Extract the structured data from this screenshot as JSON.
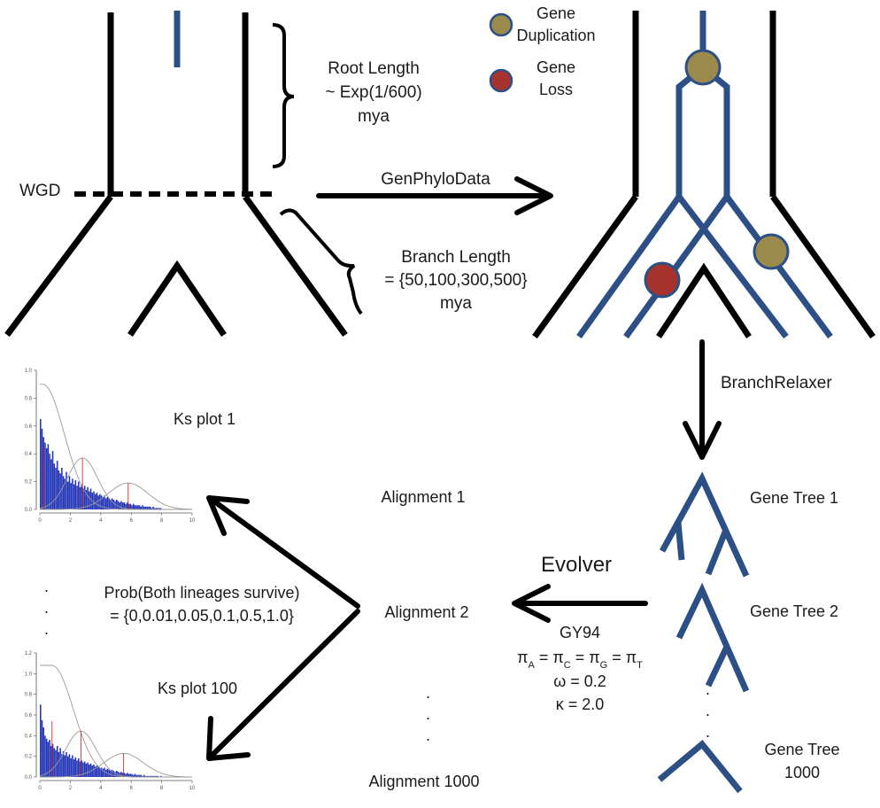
{
  "legend": {
    "duplication": "Gene Duplication",
    "duplication_l1": "Gene",
    "duplication_l2": "Duplication",
    "loss_l1": "Gene",
    "loss_l2": "Loss"
  },
  "labels": {
    "wgd": "WGD",
    "root_l1": "Root Length",
    "root_l2": "~ Exp(1/600)",
    "root_l3": "mya",
    "branch_l1": "Branch Length",
    "branch_l2": "= {50,100,300,500}",
    "branch_l3": "mya",
    "genphylodata": "GenPhyloData",
    "branchrelaxer": "BranchRelaxer",
    "evolver": "Evolver",
    "gene_tree_1": "Gene Tree 1",
    "gene_tree_2": "Gene Tree 2",
    "gene_tree_1000_l1": "Gene Tree",
    "gene_tree_1000_l2": "1000",
    "alignment_1": "Alignment 1",
    "alignment_2": "Alignment 2",
    "alignment_1000": "Alignment 1000",
    "prob_l1": "Prob(Both lineages survive)",
    "prob_l2": "= {0,0.01,0.05,0.1,0.5,1.0}",
    "gy94": "GY94",
    "pi_sym": "π",
    "pi_a": "A",
    "pi_c": "C",
    "pi_g": "G",
    "pi_t": "T",
    "omega": "ω = 0.2",
    "kappa": "κ = 2.0",
    "ks_plot_1": "Ks plot 1",
    "ks_plot_100": "Ks plot 100",
    "dot": "."
  },
  "colors": {
    "tree_blue": "#2c4f86",
    "duplication": "#9a8a4c",
    "loss": "#a8332e",
    "histogram": "#2436b8",
    "density_curve": "#9a9a9a",
    "peak_line": "#cc3333"
  },
  "chart_data": [
    {
      "type": "bar",
      "title": "",
      "xlim": [
        0,
        10
      ],
      "ylim": [
        0,
        1.0
      ],
      "xticks": [
        "0",
        "2",
        "4",
        "6",
        "8",
        "10"
      ],
      "yticks": [
        "0.0",
        "0.2",
        "0.4",
        "0.6",
        "0.8",
        "1.0"
      ],
      "peaks": [
        0.2,
        2.8,
        5.8
      ],
      "bin_width": 0.1,
      "values": [
        0.65,
        0.58,
        0.52,
        0.48,
        0.44,
        0.47,
        0.4,
        0.36,
        0.42,
        0.33,
        0.3,
        0.35,
        0.28,
        0.26,
        0.3,
        0.24,
        0.22,
        0.27,
        0.2,
        0.24,
        0.19,
        0.22,
        0.18,
        0.21,
        0.17,
        0.2,
        0.16,
        0.18,
        0.15,
        0.17,
        0.14,
        0.16,
        0.13,
        0.15,
        0.12,
        0.13,
        0.11,
        0.12,
        0.1,
        0.11,
        0.1,
        0.09,
        0.1,
        0.08,
        0.09,
        0.08,
        0.07,
        0.08,
        0.07,
        0.06,
        0.07,
        0.06,
        0.05,
        0.06,
        0.05,
        0.05,
        0.04,
        0.05,
        0.04,
        0.04,
        0.03,
        0.04,
        0.03,
        0.03,
        0.03,
        0.03,
        0.02,
        0.03,
        0.02,
        0.02,
        0.02,
        0.02,
        0.02,
        0.01,
        0.02,
        0.01,
        0.01,
        0.01,
        0.01,
        0.01
      ]
    },
    {
      "type": "bar",
      "title": "",
      "xlim": [
        0,
        10
      ],
      "ylim": [
        0,
        1.2
      ],
      "xticks": [
        "0",
        "2",
        "4",
        "6",
        "8",
        "10"
      ],
      "yticks": [
        "0.0",
        "0.2",
        "0.4",
        "0.6",
        "0.8",
        "1.0",
        "1.2"
      ],
      "peaks": [
        0.8,
        2.7,
        5.5
      ],
      "bin_width": 0.1,
      "values": [
        0.7,
        0.55,
        0.48,
        0.4,
        0.37,
        0.34,
        0.36,
        0.3,
        0.32,
        0.28,
        0.26,
        0.3,
        0.24,
        0.28,
        0.22,
        0.25,
        0.21,
        0.24,
        0.2,
        0.22,
        0.18,
        0.21,
        0.17,
        0.19,
        0.16,
        0.18,
        0.15,
        0.16,
        0.14,
        0.15,
        0.13,
        0.14,
        0.12,
        0.13,
        0.11,
        0.12,
        0.1,
        0.11,
        0.1,
        0.09,
        0.09,
        0.08,
        0.09,
        0.07,
        0.08,
        0.07,
        0.06,
        0.07,
        0.06,
        0.05,
        0.06,
        0.05,
        0.04,
        0.05,
        0.04,
        0.04,
        0.03,
        0.04,
        0.03,
        0.03,
        0.03,
        0.02,
        0.03,
        0.02,
        0.02,
        0.02,
        0.02,
        0.01,
        0.02,
        0.01,
        0.01,
        0.01,
        0.01,
        0.01,
        0.01,
        0.01,
        0.01,
        0.01,
        0.0,
        0.01
      ]
    }
  ]
}
